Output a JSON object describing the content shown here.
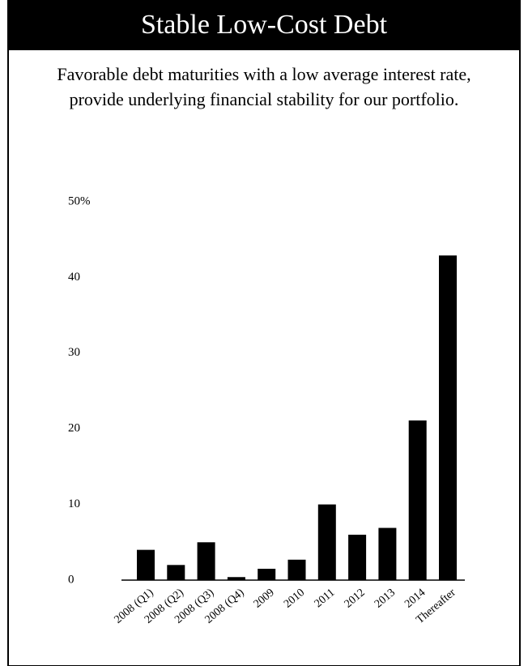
{
  "chart_data": {
    "type": "bar",
    "title": "Stable Low-Cost Debt",
    "subtitle": [
      "Favorable debt maturities with a low average interest rate,",
      "provide underlying financial stability for our portfolio."
    ],
    "categories": [
      "2008 (Q1)",
      "2008 (Q2)",
      "2008 (Q3)",
      "2008 (Q4)",
      "2009",
      "2010",
      "2011",
      "2012",
      "2013",
      "2014",
      "Thereafter"
    ],
    "values": [
      4,
      2,
      5,
      0.4,
      1.5,
      2.7,
      10,
      6,
      6.9,
      21.1,
      42.9
    ],
    "color": "#000000",
    "ylim": [
      0,
      50
    ],
    "yticks": [
      0,
      10,
      20,
      30,
      40,
      {
        "value": 50,
        "label": "50%"
      }
    ],
    "grid": false
  }
}
